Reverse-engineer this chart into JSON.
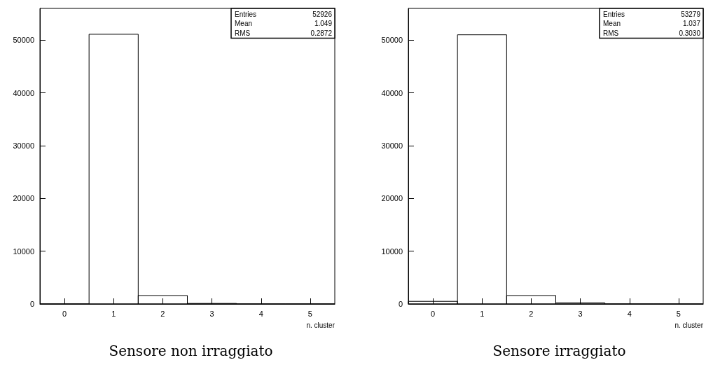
{
  "chart_data": [
    {
      "type": "histogram",
      "title": "Sensore non irraggiato",
      "xlabel": "n. cluster",
      "bins": [
        -0.5,
        0.5,
        1.5,
        2.5,
        3.5,
        4.5,
        5.5
      ],
      "values": [
        0,
        51100,
        1600,
        100,
        0,
        0
      ],
      "color": "#000000",
      "xlim": [
        -0.5,
        5.5
      ],
      "xticks": [
        0,
        1,
        2,
        3,
        4,
        5
      ],
      "ylim": [
        0,
        56000
      ],
      "yticks": [
        0,
        10000,
        20000,
        30000,
        40000,
        50000
      ],
      "grid": false,
      "annotations": [
        "Entries 52926",
        "Mean 1.049",
        "RMS 0.2872"
      ]
    },
    {
      "type": "histogram",
      "title": "Sensore irraggiato",
      "xlabel": "n. cluster",
      "bins": [
        -0.5,
        0.5,
        1.5,
        2.5,
        3.5,
        4.5,
        5.5
      ],
      "values": [
        500,
        51000,
        1600,
        200,
        0,
        0
      ],
      "color": "#000000",
      "xlim": [
        -0.5,
        5.5
      ],
      "xticks": [
        0,
        1,
        2,
        3,
        4,
        5
      ],
      "ylim": [
        0,
        56000
      ],
      "yticks": [
        0,
        10000,
        20000,
        30000,
        40000,
        50000
      ],
      "grid": false,
      "annotations": [
        "Entries 53279",
        "Mean 1.037",
        "RMS 0.3030"
      ]
    }
  ]
}
